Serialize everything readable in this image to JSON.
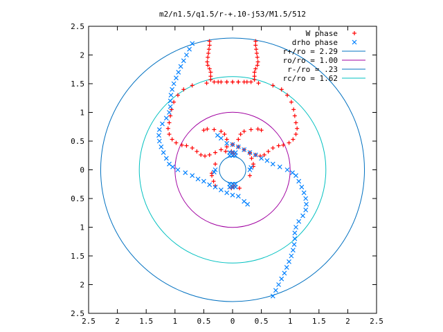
{
  "chart_data": {
    "type": "scatter",
    "title": "m2/n1.5/q1.5/r-+.10-j53/M1.5/512",
    "xlabel": "",
    "ylabel": "",
    "xlim": [
      -2.5,
      2.5
    ],
    "ylim": [
      -2.5,
      2.5
    ],
    "x_ticks": [
      -2.5,
      -2,
      -1.5,
      -1,
      -0.5,
      0,
      0.5,
      1,
      1.5,
      2,
      2.5
    ],
    "y_ticks": [
      -2.5,
      -2,
      -1.5,
      -1,
      -0.5,
      0,
      0.5,
      1,
      1.5,
      2,
      2.5
    ],
    "x_tick_labels": [
      "2.5",
      "2",
      "1.5",
      "1",
      "0.5",
      "0",
      "0.5",
      "1",
      "1.5",
      "2",
      "2.5"
    ],
    "y_tick_labels": [
      "2.5",
      "2",
      "1.5",
      "1",
      "0.5",
      "0",
      "0.5",
      "1",
      "1.5",
      "2",
      "2.5"
    ],
    "grid": false,
    "legend_position": "top-right",
    "series": [
      {
        "name": "W phase",
        "marker": "plus",
        "color": "#ff0000",
        "points": [
          [
            0.4,
            2.24
          ],
          [
            0.4,
            2.17
          ],
          [
            0.41,
            2.1
          ],
          [
            0.42,
            2.03
          ],
          [
            0.43,
            1.96
          ],
          [
            0.44,
            1.88
          ],
          [
            0.43,
            1.82
          ],
          [
            0.4,
            1.76
          ],
          [
            0.38,
            1.7
          ],
          [
            0.38,
            1.63
          ],
          [
            0.38,
            1.57
          ],
          [
            0.32,
            1.53
          ],
          [
            0.2,
            1.53
          ],
          [
            0.1,
            1.53
          ],
          [
            0.0,
            1.53
          ],
          [
            -0.1,
            1.53
          ],
          [
            -0.25,
            1.53
          ],
          [
            -0.45,
            1.51
          ],
          [
            -0.7,
            1.47
          ],
          [
            -0.85,
            1.4
          ],
          [
            -0.95,
            1.3
          ],
          [
            -1.02,
            1.18
          ],
          [
            -1.06,
            1.05
          ],
          [
            -1.08,
            0.94
          ],
          [
            -1.1,
            0.82
          ],
          [
            -1.12,
            0.72
          ],
          [
            -1.1,
            0.62
          ],
          [
            -1.05,
            0.53
          ],
          [
            -0.98,
            0.47
          ],
          [
            -0.88,
            0.43
          ],
          [
            -0.8,
            0.42
          ],
          [
            -0.7,
            0.38
          ],
          [
            -0.62,
            0.32
          ],
          [
            -0.55,
            0.26
          ],
          [
            -0.48,
            0.24
          ],
          [
            -0.4,
            0.26
          ],
          [
            -0.3,
            0.3
          ],
          [
            -0.2,
            0.35
          ],
          [
            -0.1,
            0.4
          ],
          [
            0.0,
            0.44
          ],
          [
            0.1,
            0.53
          ],
          [
            0.14,
            0.62
          ],
          [
            0.2,
            0.67
          ],
          [
            0.32,
            0.7
          ],
          [
            0.44,
            0.71
          ],
          [
            0.5,
            0.69
          ],
          [
            -0.4,
            2.24
          ],
          [
            -0.4,
            2.17
          ],
          [
            -0.41,
            2.1
          ],
          [
            -0.42,
            2.03
          ],
          [
            -0.43,
            1.96
          ],
          [
            -0.44,
            1.88
          ],
          [
            -0.43,
            1.82
          ],
          [
            -0.4,
            1.76
          ],
          [
            -0.38,
            1.7
          ],
          [
            -0.38,
            1.63
          ],
          [
            -0.38,
            1.57
          ],
          [
            -0.32,
            1.53
          ],
          [
            -0.2,
            1.53
          ],
          [
            -0.1,
            1.53
          ],
          [
            0.0,
            1.53
          ],
          [
            0.1,
            1.53
          ],
          [
            0.25,
            1.53
          ],
          [
            0.45,
            1.51
          ],
          [
            0.7,
            1.47
          ],
          [
            0.85,
            1.4
          ],
          [
            0.95,
            1.3
          ],
          [
            1.02,
            1.18
          ],
          [
            1.06,
            1.05
          ],
          [
            1.08,
            0.94
          ],
          [
            1.1,
            0.82
          ],
          [
            1.12,
            0.72
          ],
          [
            1.1,
            0.62
          ],
          [
            1.05,
            0.53
          ],
          [
            0.98,
            0.47
          ],
          [
            0.88,
            0.43
          ],
          [
            0.8,
            0.42
          ],
          [
            0.7,
            0.38
          ],
          [
            0.62,
            0.32
          ],
          [
            0.55,
            0.26
          ],
          [
            0.48,
            0.24
          ],
          [
            0.4,
            0.26
          ],
          [
            0.3,
            0.3
          ],
          [
            0.2,
            0.35
          ],
          [
            0.1,
            0.4
          ],
          [
            0.0,
            0.44
          ],
          [
            -0.1,
            0.53
          ],
          [
            -0.14,
            0.62
          ],
          [
            -0.2,
            0.67
          ],
          [
            -0.32,
            0.7
          ],
          [
            -0.44,
            0.71
          ],
          [
            -0.5,
            0.69
          ],
          [
            -0.36,
            -0.1
          ],
          [
            -0.33,
            -0.2
          ],
          [
            -0.3,
            -0.28
          ],
          [
            -0.36,
            -0.06
          ],
          [
            -0.3,
            0.1
          ],
          [
            0.36,
            0.1
          ],
          [
            0.33,
            0.2
          ],
          [
            0.3,
            0.28
          ],
          [
            0.36,
            0.06
          ],
          [
            0.3,
            -0.1
          ],
          [
            -0.02,
            0.32
          ],
          [
            0.02,
            0.28
          ],
          [
            -0.02,
            -0.32
          ],
          [
            0.02,
            -0.28
          ],
          [
            0.12,
            -0.32
          ],
          [
            -0.12,
            0.32
          ]
        ]
      },
      {
        "name": "drho phase",
        "marker": "cross",
        "color": "#0080ff",
        "points": [
          [
            -0.7,
            2.2
          ],
          [
            -0.75,
            2.1
          ],
          [
            -0.8,
            2.0
          ],
          [
            -0.85,
            1.9
          ],
          [
            -0.9,
            1.8
          ],
          [
            -0.94,
            1.7
          ],
          [
            -0.98,
            1.6
          ],
          [
            -1.02,
            1.5
          ],
          [
            -1.05,
            1.4
          ],
          [
            -1.07,
            1.3
          ],
          [
            -1.08,
            1.2
          ],
          [
            -1.08,
            1.1
          ],
          [
            -1.1,
            1.0
          ],
          [
            -1.15,
            0.9
          ],
          [
            -1.22,
            0.8
          ],
          [
            -1.27,
            0.7
          ],
          [
            -1.28,
            0.6
          ],
          [
            -1.27,
            0.5
          ],
          [
            -1.24,
            0.4
          ],
          [
            -1.2,
            0.3
          ],
          [
            -1.15,
            0.2
          ],
          [
            -1.1,
            0.1
          ],
          [
            -1.04,
            0.05
          ],
          [
            -0.95,
            0.0
          ],
          [
            -0.82,
            -0.05
          ],
          [
            -0.7,
            -0.1
          ],
          [
            -0.6,
            -0.16
          ],
          [
            -0.5,
            -0.2
          ],
          [
            -0.4,
            -0.26
          ],
          [
            -0.3,
            -0.3
          ],
          [
            -0.2,
            -0.35
          ],
          [
            -0.1,
            -0.4
          ],
          [
            0.0,
            -0.44
          ],
          [
            0.1,
            -0.46
          ],
          [
            0.2,
            -0.55
          ],
          [
            0.26,
            -0.6
          ],
          [
            0.7,
            -2.2
          ],
          [
            0.75,
            -2.1
          ],
          [
            0.8,
            -2.0
          ],
          [
            0.85,
            -1.9
          ],
          [
            0.9,
            -1.8
          ],
          [
            0.94,
            -1.7
          ],
          [
            0.98,
            -1.6
          ],
          [
            1.02,
            -1.5
          ],
          [
            1.05,
            -1.4
          ],
          [
            1.07,
            -1.3
          ],
          [
            1.08,
            -1.2
          ],
          [
            1.08,
            -1.1
          ],
          [
            1.1,
            -1.0
          ],
          [
            1.15,
            -0.9
          ],
          [
            1.22,
            -0.8
          ],
          [
            1.27,
            -0.7
          ],
          [
            1.28,
            -0.6
          ],
          [
            1.27,
            -0.5
          ],
          [
            1.24,
            -0.4
          ],
          [
            1.2,
            -0.3
          ],
          [
            1.15,
            -0.2
          ],
          [
            1.1,
            -0.1
          ],
          [
            1.04,
            -0.05
          ],
          [
            0.95,
            0.0
          ],
          [
            0.82,
            0.05
          ],
          [
            0.7,
            0.1
          ],
          [
            0.6,
            0.16
          ],
          [
            0.5,
            0.2
          ],
          [
            0.4,
            0.26
          ],
          [
            0.3,
            0.3
          ],
          [
            0.2,
            0.35
          ],
          [
            0.1,
            0.4
          ],
          [
            0.0,
            0.44
          ],
          [
            -0.1,
            0.46
          ],
          [
            -0.2,
            0.55
          ],
          [
            -0.26,
            0.6
          ],
          [
            -0.05,
            0.3
          ],
          [
            0.0,
            0.3
          ],
          [
            0.05,
            0.3
          ],
          [
            -0.05,
            0.25
          ],
          [
            0.0,
            0.25
          ],
          [
            0.05,
            0.25
          ],
          [
            0.05,
            -0.3
          ],
          [
            0.0,
            -0.3
          ],
          [
            -0.05,
            -0.3
          ],
          [
            0.05,
            -0.25
          ],
          [
            0.0,
            -0.25
          ],
          [
            -0.05,
            -0.25
          ],
          [
            -0.3,
            0.0
          ],
          [
            -0.32,
            -0.04
          ],
          [
            0.3,
            0.0
          ],
          [
            0.32,
            0.04
          ]
        ]
      }
    ],
    "circles": [
      {
        "name": "r+/ro = 2.29",
        "radius": 2.29,
        "color": "#0070c0"
      },
      {
        "name": "ro/ro = 1.00",
        "radius": 1.0,
        "color": "#a000a0"
      },
      {
        "name": "r-/ro = .23",
        "radius": 0.23,
        "color": "#0070c0"
      },
      {
        "name": "rc/ro = 1.62",
        "radius": 1.62,
        "color": "#00c0c0"
      }
    ]
  }
}
